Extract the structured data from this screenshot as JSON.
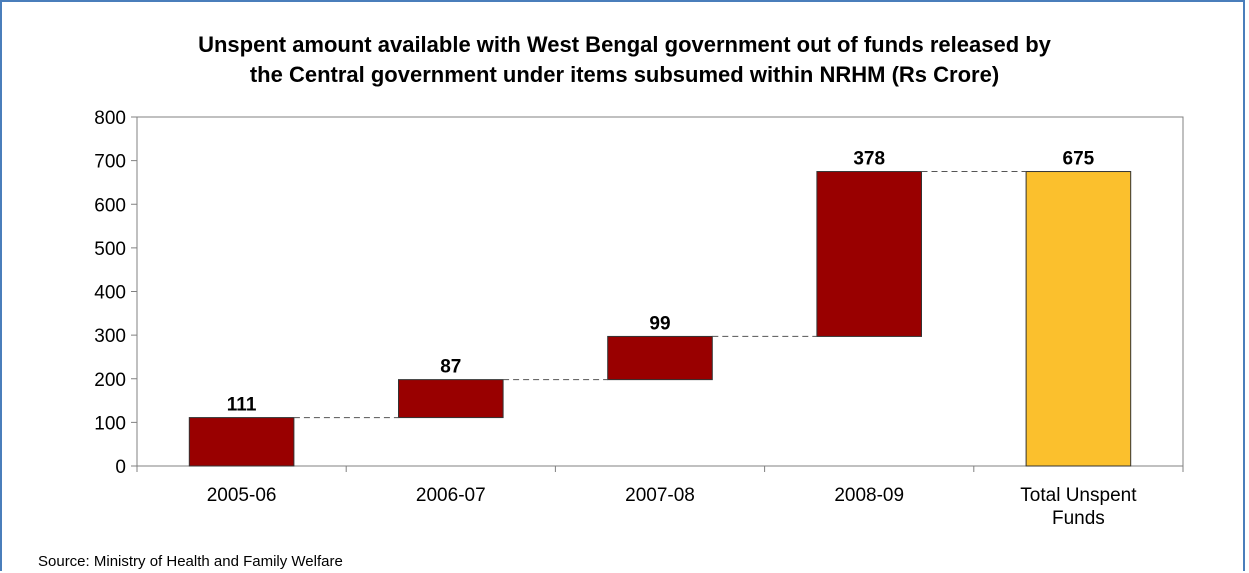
{
  "chart_data": {
    "type": "bar",
    "subtype": "waterfall",
    "title_lines": [
      "Unspent amount available with West Bengal government out of funds released by",
      "the Central government under items subsumed within NRHM (Rs Crore)"
    ],
    "categories": [
      [
        "2005-06"
      ],
      [
        "2006-07"
      ],
      [
        "2007-08"
      ],
      [
        "2008-09"
      ],
      [
        "Total Unspent",
        "Funds"
      ]
    ],
    "values": [
      111,
      87,
      99,
      378,
      675
    ],
    "value_labels": [
      "111",
      "87",
      "99",
      "378",
      "675"
    ],
    "bar_kinds": [
      "step",
      "step",
      "step",
      "step",
      "total"
    ],
    "bar_colors": {
      "step": "#990000",
      "total": "#fbc02d"
    },
    "connector_style": "dashed",
    "ylim": [
      0,
      800
    ],
    "yticks": [
      0,
      100,
      200,
      300,
      400,
      500,
      600,
      700,
      800
    ],
    "xlabel": "",
    "ylabel": "",
    "grid": false,
    "legend": "none"
  },
  "source": "Source: Ministry of Health and Family Welfare"
}
